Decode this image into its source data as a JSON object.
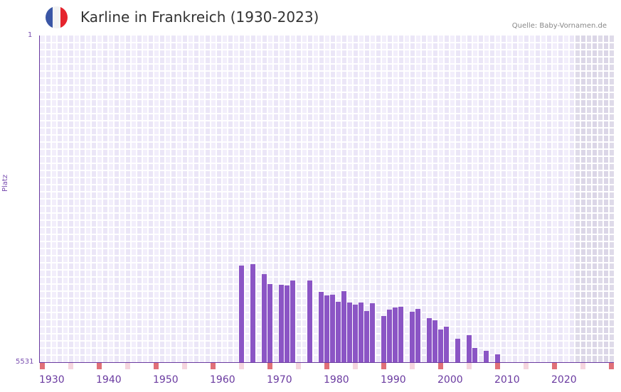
{
  "header": {
    "title": "Karline in Frankreich (1930-2023)",
    "source": "Quelle: Baby-Vornamen.de",
    "flag": {
      "icon": "france-flag-icon",
      "colors": [
        "#3a56a5",
        "#f3f3f3",
        "#e5242d"
      ]
    }
  },
  "axis": {
    "y_top_label": "1",
    "y_bottom_label": "5531",
    "y_title": "Platz",
    "x_labels": [
      "1930",
      "1940",
      "1950",
      "1960",
      "1970",
      "1980",
      "1990",
      "2000",
      "2010",
      "2020"
    ]
  },
  "colors": {
    "bar": "#8b55c5",
    "axis": "#6a3aa0",
    "plot_bg": "#f2eefb",
    "decade_marker": "#e07078",
    "half_decade_marker": "#f5d5de",
    "future_shade": "#dcd6e8"
  },
  "chart_data": {
    "type": "bar",
    "title": "Karline in Frankreich (1930-2023)",
    "xlabel": "",
    "ylabel": "Platz",
    "ylim": [
      5531,
      1
    ],
    "y_inverted": true,
    "x_range": [
      1930,
      2030
    ],
    "grid": true,
    "legend": null,
    "categories": [
      1965,
      1967,
      1969,
      1970,
      1972,
      1973,
      1974,
      1977,
      1979,
      1980,
      1981,
      1982,
      1983,
      1984,
      1985,
      1986,
      1987,
      1988,
      1990,
      1991,
      1992,
      1993,
      1995,
      1996,
      1998,
      1999,
      2000,
      2001,
      2003,
      2005,
      2006,
      2008,
      2010
    ],
    "values": [
      3895,
      3871,
      4040,
      4208,
      4220,
      4232,
      4148,
      4148,
      4341,
      4401,
      4389,
      4509,
      4329,
      4521,
      4557,
      4521,
      4665,
      4533,
      4749,
      4641,
      4605,
      4593,
      4677,
      4629,
      4785,
      4821,
      4978,
      4930,
      5134,
      5074,
      5290,
      5338,
      5398
    ],
    "annotations": [
      "Quelle: Baby-Vornamen.de"
    ]
  }
}
